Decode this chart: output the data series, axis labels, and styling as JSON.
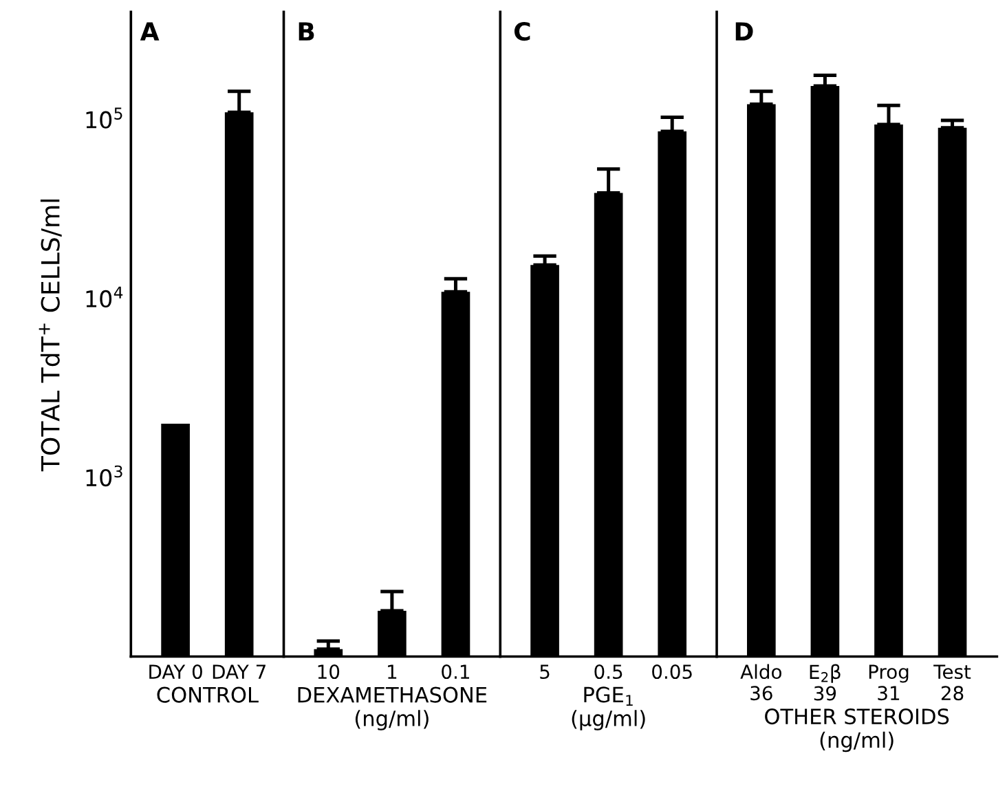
{
  "chart_data": [
    {
      "type": "bar",
      "title": "A",
      "ylabel": "TOTAL TdT$^{+}$ CELLS/ml",
      "xlabel": "CONTROL",
      "categories": [
        "DAY 0",
        "DAY 7"
      ],
      "values": [
        2000,
        110000
      ],
      "errors": [
        null,
        [
          110000,
          144000
        ]
      ],
      "color": "#000000",
      "log": true,
      "ylim": [
        100,
        400000
      ],
      "yticks": [
        {
          "value": 1000,
          "label": "10$^{3}$"
        },
        {
          "value": 10000,
          "label": "10$^{4}$"
        },
        {
          "value": 100000,
          "label": "10$^{5}$"
        }
      ],
      "grid": false
    },
    {
      "type": "bar",
      "title": "B",
      "xlabel": "DEXAMETHASONE\n(ng/ml)",
      "categories": [
        "10",
        "1",
        "0.1"
      ],
      "values": [
        110,
        180,
        10900
      ],
      "errors": [
        [
          110,
          122
        ],
        [
          180,
          231
        ],
        [
          10900,
          12900
        ]
      ],
      "color": "#000000",
      "log": true,
      "ylim": [
        100,
        400000
      ],
      "tick_labels": "x",
      "grid": false
    },
    {
      "type": "bar",
      "title": "C",
      "xlabel": "PGE$_{1}$\n(µg/ml)",
      "categories": [
        "5",
        "0.5",
        "0.05"
      ],
      "values": [
        15400,
        38900,
        86000
      ],
      "errors": [
        [
          15400,
          17300
        ],
        [
          38900,
          53000
        ],
        [
          86000,
          103000
        ]
      ],
      "color": "#000000",
      "log": true,
      "ylim": [
        100,
        400000
      ],
      "tick_labels": "x",
      "grid": false
    },
    {
      "type": "bar",
      "title": "D",
      "xlabel": "OTHER STEROIDS\n(ng/ml)",
      "categories": [
        "Aldo\n36",
        "E$_{2}$β\n39",
        "Prog\n31",
        "Test\n28"
      ],
      "values": [
        122000,
        154000,
        94000,
        90000
      ],
      "errors": [
        [
          122000,
          144000
        ],
        [
          154000,
          177000
        ],
        [
          94000,
          120000
        ],
        [
          90000,
          99000
        ]
      ],
      "color": "#000000",
      "log": true,
      "ylim": [
        100,
        400000
      ],
      "tick_labels": "x",
      "grid": false
    }
  ]
}
